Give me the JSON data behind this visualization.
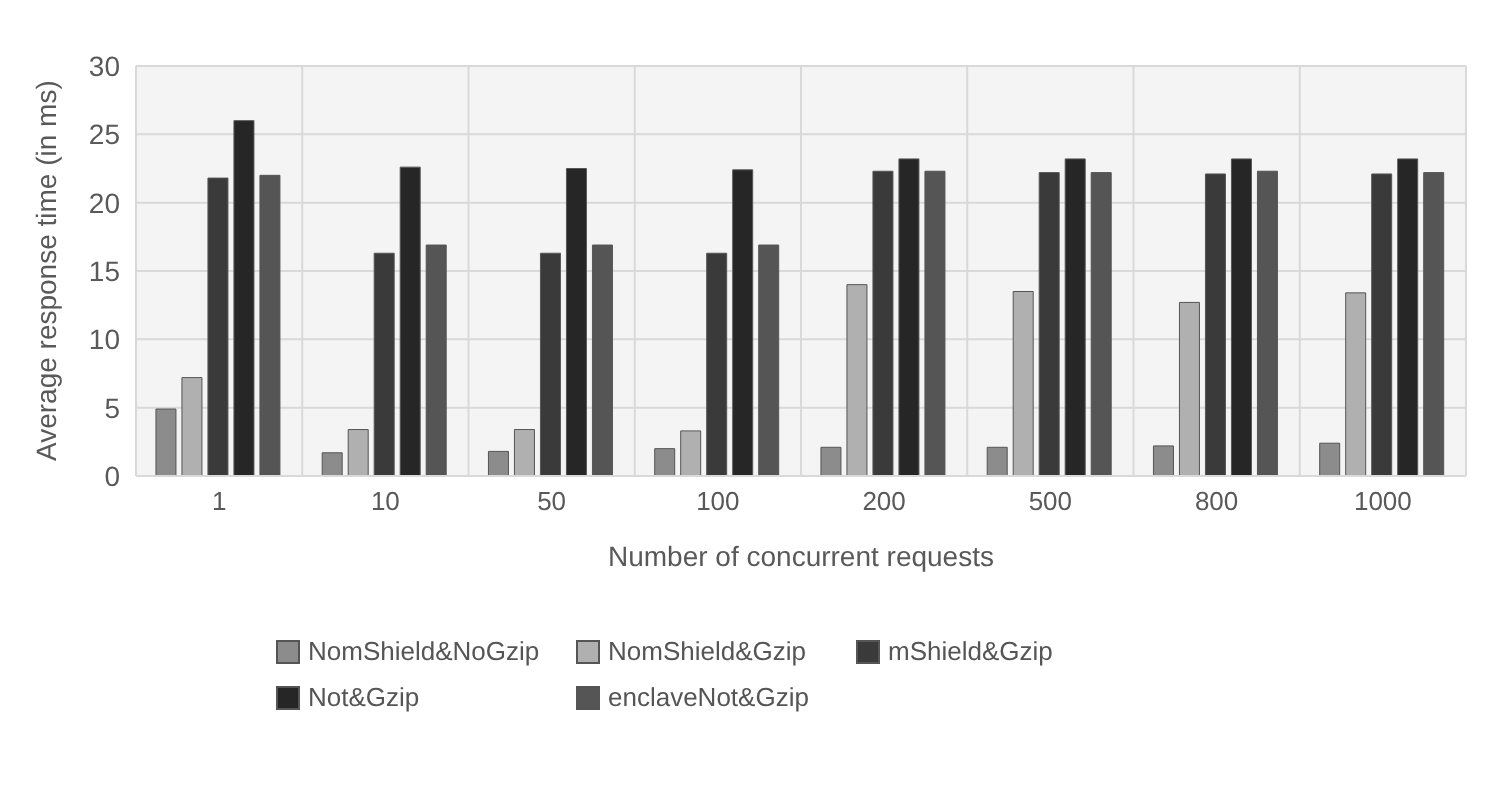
{
  "chart_data": {
    "type": "bar",
    "xlabel": "Number of concurrent requests",
    "ylabel": "Average response time (in ms)",
    "categories": [
      "1",
      "10",
      "50",
      "100",
      "200",
      "500",
      "800",
      "1000"
    ],
    "series": [
      {
        "name": "NomShield&NoGzip",
        "color": "#8c8c8c",
        "values": [
          4.9,
          1.7,
          1.8,
          2.0,
          2.1,
          2.1,
          2.2,
          2.4
        ]
      },
      {
        "name": "NomShield&Gzip",
        "color": "#b0b0b0",
        "values": [
          7.2,
          3.4,
          3.4,
          3.3,
          14.0,
          13.5,
          12.7,
          13.4
        ]
      },
      {
        "name": "mShield&Gzip",
        "color": "#3a3a3a",
        "values": [
          21.8,
          16.3,
          16.3,
          16.3,
          22.3,
          22.2,
          22.1,
          22.1
        ]
      },
      {
        "name": "Not&Gzip",
        "color": "#262626",
        "values": [
          26,
          22.6,
          22.5,
          22.4,
          23.2,
          23.2,
          23.2,
          23.2
        ]
      },
      {
        "name": "enclaveNot&Gzip",
        "color": "#555555",
        "values": [
          22,
          16.9,
          16.9,
          16.9,
          22.3,
          22.2,
          22.3,
          22.2
        ]
      }
    ],
    "ylim": [
      0,
      30
    ],
    "yticks": [
      0,
      5,
      10,
      15,
      20,
      25,
      30
    ],
    "grid": true,
    "legend": "bottom"
  }
}
